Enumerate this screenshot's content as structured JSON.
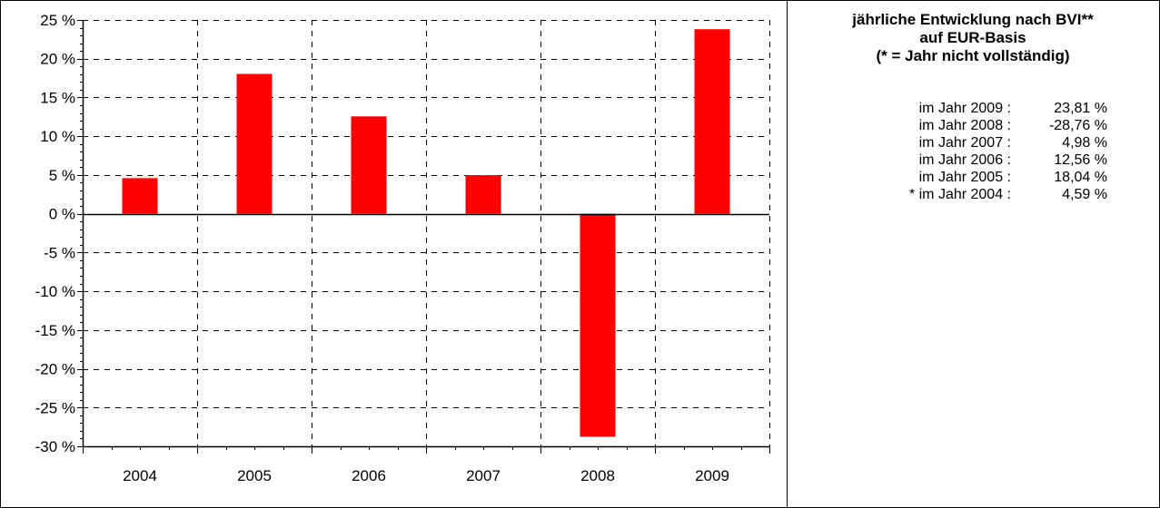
{
  "chart_data": {
    "type": "bar",
    "categories": [
      "2004",
      "2005",
      "2006",
      "2007",
      "2008",
      "2009"
    ],
    "values": [
      4.59,
      18.04,
      12.56,
      4.98,
      -28.76,
      23.81
    ],
    "ylim": [
      -30,
      25
    ],
    "yticks": [
      25,
      20,
      15,
      10,
      5,
      0,
      -5,
      -10,
      -15,
      -20,
      -25,
      -30
    ],
    "ytick_labels": [
      "25 %",
      "20 %",
      "15 %",
      "10 %",
      "5 %",
      "0 %",
      "-5 %",
      "-10 %",
      "-15 %",
      "-20 %",
      "-25 %",
      "-30 %"
    ],
    "grid": true,
    "bar_color": "#ff0000"
  },
  "panel": {
    "title_lines": [
      "jährliche Entwicklung nach BVI**",
      "auf EUR-Basis",
      "(* = Jahr nicht vollständig)"
    ],
    "rows": [
      {
        "label": "im Jahr 2009 :",
        "value": "23,81 %"
      },
      {
        "label": "im Jahr 2008 :",
        "value": "-28,76 %"
      },
      {
        "label": "im Jahr 2007 :",
        "value": "4,98 %"
      },
      {
        "label": "im Jahr 2006 :",
        "value": "12,56 %"
      },
      {
        "label": "im Jahr 2005 :",
        "value": "18,04 %"
      },
      {
        "label": "* im Jahr 2004 :",
        "value": "4,59 %"
      }
    ]
  }
}
